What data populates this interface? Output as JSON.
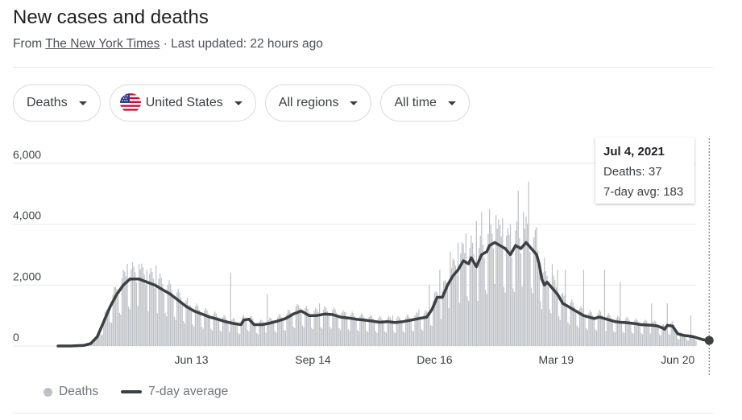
{
  "header": {
    "title": "New cases and deaths",
    "source_prefix": "From ",
    "source_link": "The New York Times",
    "source_suffix": " · Last updated: 22 hours ago"
  },
  "filters": {
    "metric": "Deaths",
    "country": "United States",
    "region": "All regions",
    "time": "All time"
  },
  "tooltip": {
    "date": "Jul 4, 2021",
    "deaths": "Deaths: 37",
    "avg": "7-day avg: 183"
  },
  "legend": {
    "bars": "Deaths",
    "line": "7-day average"
  },
  "colors": {
    "bar": "#bdc1c6",
    "line": "#3c4043",
    "grid": "#e8eaed",
    "text": "#202124"
  },
  "chart_data": {
    "type": "bar",
    "title": "New cases and deaths",
    "ylim": [
      0,
      6000
    ],
    "yticks": [
      0,
      2000,
      4000,
      6000
    ],
    "ytick_labels": [
      "0",
      "2,000",
      "4,000",
      "6,000"
    ],
    "xticks": [
      {
        "day": 102,
        "label": "Jun 13"
      },
      {
        "day": 195,
        "label": "Sep 14"
      },
      {
        "day": 288,
        "label": "Dec 16"
      },
      {
        "day": 381,
        "label": "Mar 19"
      },
      {
        "day": 474,
        "label": "Jun 20"
      }
    ],
    "x_range": [
      0,
      488
    ],
    "series": [
      {
        "name": "7-day average",
        "type": "line",
        "points": [
          [
            0,
            0
          ],
          [
            10,
            0
          ],
          [
            20,
            20
          ],
          [
            25,
            80
          ],
          [
            30,
            300
          ],
          [
            35,
            800
          ],
          [
            40,
            1300
          ],
          [
            45,
            1700
          ],
          [
            50,
            2000
          ],
          [
            55,
            2200
          ],
          [
            62,
            2200
          ],
          [
            68,
            2100
          ],
          [
            74,
            2000
          ],
          [
            80,
            1850
          ],
          [
            86,
            1700
          ],
          [
            92,
            1500
          ],
          [
            98,
            1300
          ],
          [
            104,
            1150
          ],
          [
            110,
            1050
          ],
          [
            116,
            950
          ],
          [
            122,
            880
          ],
          [
            128,
            800
          ],
          [
            134,
            740
          ],
          [
            140,
            700
          ],
          [
            142,
            850
          ],
          [
            146,
            880
          ],
          [
            150,
            700
          ],
          [
            156,
            700
          ],
          [
            162,
            750
          ],
          [
            168,
            820
          ],
          [
            174,
            900
          ],
          [
            180,
            1050
          ],
          [
            186,
            1150
          ],
          [
            192,
            1000
          ],
          [
            198,
            1000
          ],
          [
            204,
            1050
          ],
          [
            210,
            1030
          ],
          [
            216,
            950
          ],
          [
            222,
            920
          ],
          [
            228,
            880
          ],
          [
            234,
            850
          ],
          [
            240,
            820
          ],
          [
            246,
            780
          ],
          [
            252,
            800
          ],
          [
            258,
            770
          ],
          [
            264,
            800
          ],
          [
            270,
            850
          ],
          [
            276,
            900
          ],
          [
            282,
            950
          ],
          [
            286,
            1200
          ],
          [
            290,
            1600
          ],
          [
            294,
            1600
          ],
          [
            298,
            2000
          ],
          [
            302,
            2300
          ],
          [
            306,
            2500
          ],
          [
            310,
            2800
          ],
          [
            314,
            2700
          ],
          [
            316,
            2900
          ],
          [
            320,
            2600
          ],
          [
            324,
            3000
          ],
          [
            328,
            3100
          ],
          [
            330,
            3300
          ],
          [
            334,
            3400
          ],
          [
            338,
            3300
          ],
          [
            342,
            3200
          ],
          [
            346,
            3000
          ],
          [
            350,
            3300
          ],
          [
            354,
            3200
          ],
          [
            358,
            3400
          ],
          [
            362,
            3200
          ],
          [
            366,
            3000
          ],
          [
            368,
            2700
          ],
          [
            370,
            2200
          ],
          [
            372,
            2000
          ],
          [
            374,
            2100
          ],
          [
            378,
            1900
          ],
          [
            382,
            1700
          ],
          [
            386,
            1400
          ],
          [
            390,
            1300
          ],
          [
            394,
            1200
          ],
          [
            398,
            1100
          ],
          [
            402,
            1000
          ],
          [
            406,
            950
          ],
          [
            410,
            900
          ],
          [
            414,
            950
          ],
          [
            418,
            900
          ],
          [
            422,
            850
          ],
          [
            426,
            800
          ],
          [
            430,
            780
          ],
          [
            434,
            770
          ],
          [
            438,
            750
          ],
          [
            442,
            730
          ],
          [
            446,
            700
          ],
          [
            450,
            690
          ],
          [
            454,
            680
          ],
          [
            458,
            660
          ],
          [
            462,
            600
          ],
          [
            464,
            550
          ],
          [
            466,
            680
          ],
          [
            470,
            650
          ],
          [
            474,
            400
          ],
          [
            478,
            350
          ],
          [
            482,
            330
          ],
          [
            486,
            300
          ],
          [
            490,
            250
          ],
          [
            494,
            200
          ],
          [
            498,
            183
          ]
        ]
      },
      {
        "name": "Deaths",
        "type": "bar",
        "spikes": [
          [
            53,
            2700
          ],
          [
            58,
            2600
          ],
          [
            62,
            2700
          ],
          [
            68,
            2500
          ],
          [
            75,
            2650
          ],
          [
            100,
            1300
          ],
          [
            132,
            2400
          ],
          [
            160,
            1700
          ],
          [
            182,
            1300
          ],
          [
            200,
            1400
          ],
          [
            220,
            1100
          ],
          [
            256,
            1000
          ],
          [
            276,
            1200
          ],
          [
            284,
            2000
          ],
          [
            292,
            2500
          ],
          [
            300,
            3100
          ],
          [
            306,
            3400
          ],
          [
            312,
            3700
          ],
          [
            320,
            4100
          ],
          [
            324,
            4400
          ],
          [
            330,
            4500
          ],
          [
            335,
            4300
          ],
          [
            340,
            4200
          ],
          [
            346,
            4000
          ],
          [
            352,
            5100
          ],
          [
            356,
            4400
          ],
          [
            360,
            5400
          ],
          [
            366,
            3900
          ],
          [
            372,
            2900
          ],
          [
            378,
            2700
          ],
          [
            382,
            2500
          ],
          [
            388,
            2500
          ],
          [
            402,
            2500
          ],
          [
            418,
            2500
          ],
          [
            430,
            2100
          ],
          [
            454,
            1400
          ],
          [
            466,
            1400
          ],
          [
            484,
            1000
          ]
        ]
      }
    ]
  }
}
